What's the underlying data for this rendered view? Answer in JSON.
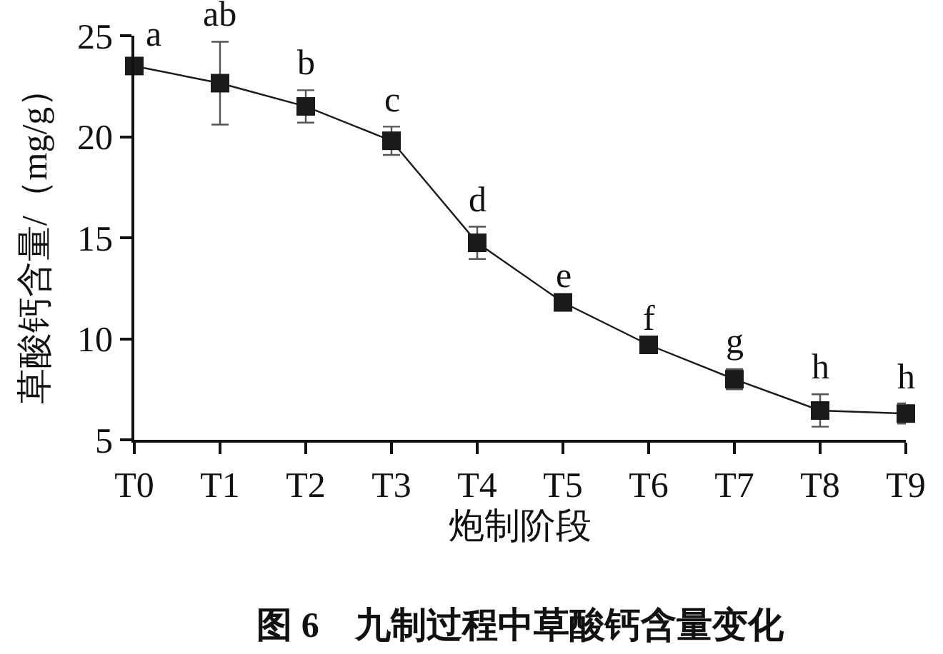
{
  "chart_data": {
    "type": "line",
    "title": "图 6    九制过程中草酸钙含量变化",
    "xlabel": "炮制阶段",
    "ylabel": "草酸钙含量/（mg/g）",
    "categories": [
      "T0",
      "T1",
      "T2",
      "T3",
      "T4",
      "T5",
      "T6",
      "T7",
      "T8",
      "T9"
    ],
    "series": [
      {
        "color": "#1a1a1a",
        "values": [
          23.5,
          22.65,
          21.5,
          19.8,
          14.75,
          11.8,
          9.7,
          8.0,
          6.45,
          6.3
        ],
        "errors": [
          null,
          2.05,
          0.8,
          0.7,
          0.8,
          null,
          null,
          0.5,
          0.8,
          0.5
        ]
      }
    ],
    "annotations": [
      {
        "text": "a",
        "x": "T0",
        "y": 23.5
      },
      {
        "text": "ab",
        "x": "T1",
        "y": 22.65
      },
      {
        "text": "b",
        "x": "T2",
        "y": 21.5
      },
      {
        "text": "c",
        "x": "T3",
        "y": 19.8
      },
      {
        "text": "d",
        "x": "T4",
        "y": 14.75
      },
      {
        "text": "e",
        "x": "T5",
        "y": 11.8
      },
      {
        "text": "f",
        "x": "T6",
        "y": 9.7
      },
      {
        "text": "g",
        "x": "T7",
        "y": 8.0
      },
      {
        "text": "h",
        "x": "T8",
        "y": 6.45
      },
      {
        "text": "h",
        "x": "T9",
        "y": 6.3
      }
    ],
    "ylim": [
      5,
      25
    ],
    "yticks": [
      5,
      10,
      15,
      20,
      25
    ],
    "marker": "square",
    "line_style": "solid"
  }
}
